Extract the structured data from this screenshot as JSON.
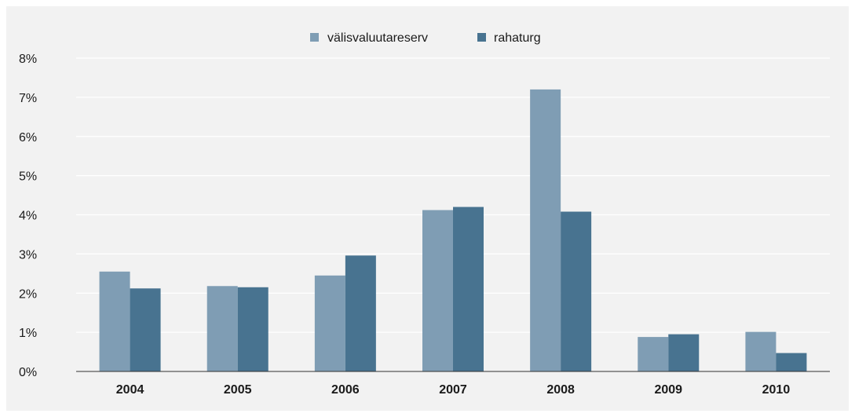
{
  "chart_data": {
    "type": "bar",
    "categories": [
      "2004",
      "2005",
      "2006",
      "2007",
      "2008",
      "2009",
      "2010"
    ],
    "series": [
      {
        "name": "välisvaluutareserv",
        "color": "#7f9db4",
        "values": [
          2.55,
          2.18,
          2.45,
          4.12,
          7.2,
          0.88,
          1.01
        ]
      },
      {
        "name": "rahaturg",
        "color": "#487390",
        "values": [
          2.12,
          2.15,
          2.96,
          4.2,
          4.08,
          0.95,
          0.47
        ]
      }
    ],
    "yticks": [
      "0%",
      "1%",
      "2%",
      "3%",
      "4%",
      "5%",
      "6%",
      "7%",
      "8%"
    ],
    "ylim": [
      0,
      8
    ],
    "unit": "%",
    "grid": true,
    "legend_position": "top-center"
  }
}
